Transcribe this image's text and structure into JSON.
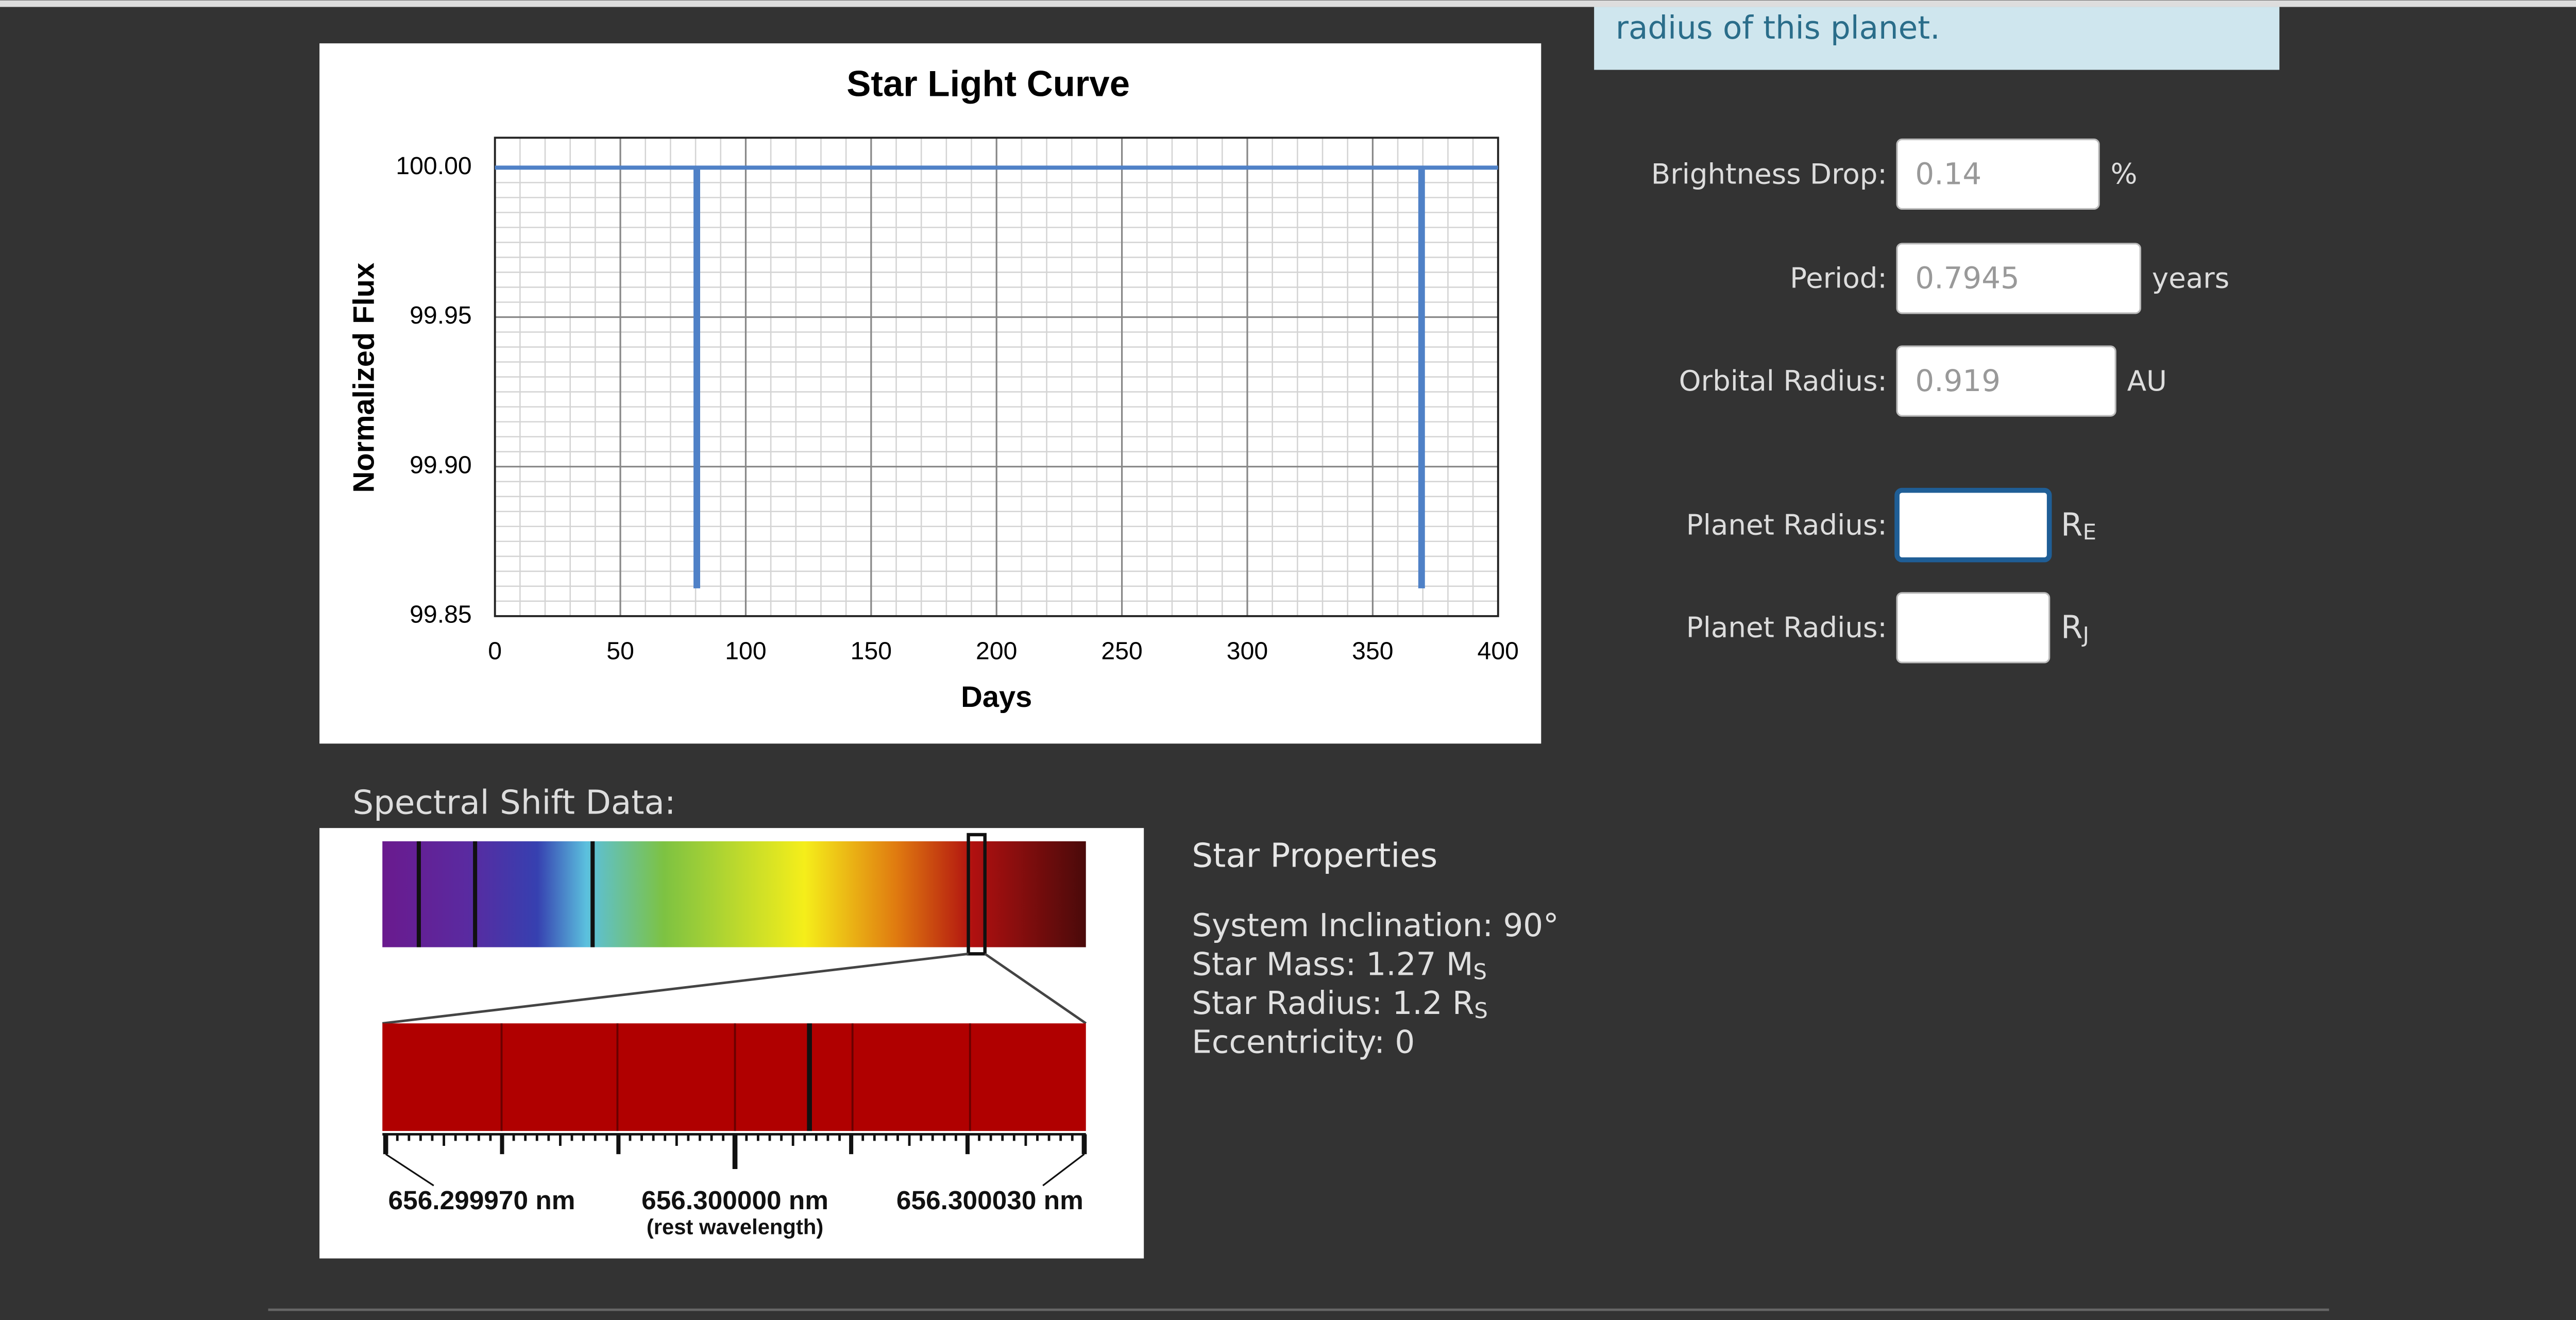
{
  "header": {
    "note": "radius of this planet."
  },
  "chart_data": {
    "type": "line",
    "title": "Star Light Curve",
    "x_label": "Days",
    "y_label": "Normalized Flux",
    "x": [
      0,
      80,
      80,
      81,
      81,
      369,
      369,
      370,
      370,
      400
    ],
    "series": [
      {
        "color": "#4f81c7",
        "values": [
          100,
          100,
          99.86,
          99.86,
          100,
          100,
          99.86,
          99.86,
          100,
          100
        ]
      }
    ],
    "xlim": [
      0,
      400
    ],
    "ylim": [
      99.85,
      100.01
    ],
    "xticks": [
      0,
      50,
      100,
      150,
      200,
      250,
      300,
      350,
      400
    ],
    "yticks": [
      {
        "value": 99.85,
        "label": "99.85"
      },
      {
        "value": 99.9,
        "label": "99.90"
      },
      {
        "value": 99.95,
        "label": "99.95"
      },
      {
        "value": 100,
        "label": "100.00"
      }
    ],
    "grid": true,
    "minor_grid": true
  },
  "spectrum": {
    "heading": "Spectral Shift Data:",
    "labels": [
      "656.299970 nm",
      "656.300000 nm",
      "656.300030 nm"
    ],
    "rest_note": "(rest wavelength)"
  },
  "star_properties": {
    "title": "Star Properties",
    "lines": [
      {
        "text": "System Inclination: 90°"
      },
      {
        "text": "Star Mass: 1.27 M",
        "sub": "S"
      },
      {
        "text": "Star Radius: 1.2 R",
        "sub": "S"
      },
      {
        "text": "Eccentricity: 0"
      }
    ]
  },
  "form": {
    "fields": [
      {
        "label": "Brightness Drop:",
        "value": "0.14",
        "unit": "%"
      },
      {
        "label": "Period:",
        "value": "0.7945",
        "unit": "years"
      },
      {
        "label": "Orbital Radius:",
        "value": "0.919",
        "unit": "AU"
      },
      {
        "label": "Planet Radius:",
        "unit": "R",
        "unit_sub": "E"
      },
      {
        "label": "Planet Radius:",
        "unit": "R",
        "unit_sub": "J"
      }
    ]
  }
}
